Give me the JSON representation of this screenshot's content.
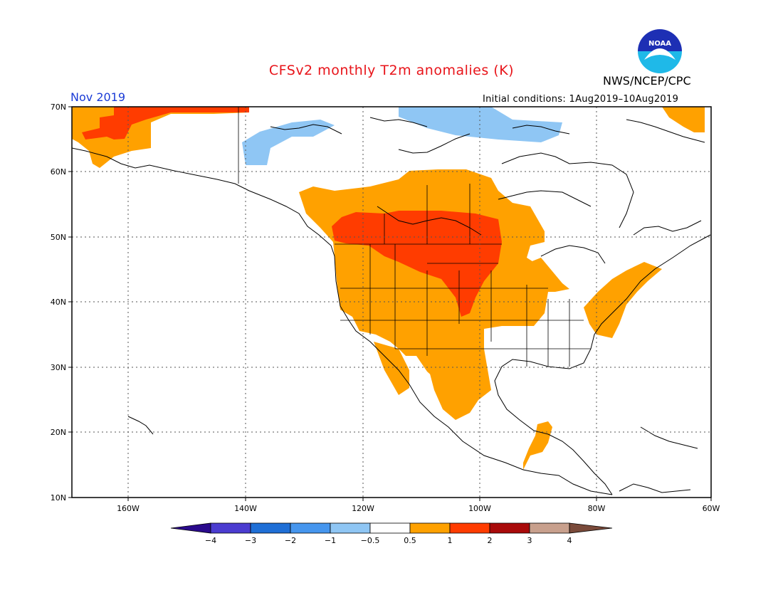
{
  "title": "CFSv2 monthly T2m anomalies (K)",
  "valid_month": "Nov 2019",
  "initial_conditions": "Initial conditions: 1Aug2019–10Aug2019",
  "agency": "NWS/NCEP/CPC",
  "logo_text": "NOAA",
  "colors": {
    "title": "#e8141a",
    "valid_month": "#1a3bd6",
    "c_neg4": "#2a0a8c",
    "c_neg3": "#4b3cd0",
    "c_neg2": "#1f6fd6",
    "c_neg1": "#4696ee",
    "c_neg05": "#8fc6f4",
    "c_zero": "#ffffff",
    "c_05": "#ffa100",
    "c_1": "#ff3c00",
    "c_2": "#a90a0a",
    "c_3": "#c8a08d",
    "c_4": "#7a4a3a",
    "coast": "#000000",
    "grid": "#555555"
  },
  "axes": {
    "lat_labels": [
      "70N",
      "60N",
      "50N",
      "40N",
      "30N",
      "20N",
      "10N"
    ],
    "lon_labels": [
      "160W",
      "140W",
      "120W",
      "100W",
      "80W",
      "60W"
    ]
  },
  "colorbar": {
    "labels": [
      "−4",
      "−3",
      "−2",
      "−1",
      "−0.5",
      "0.5",
      "1",
      "2",
      "3",
      "4"
    ]
  },
  "map_regions": [
    {
      "name": "Alaska",
      "anomaly_class": "1 to 2 (north), 0.5 to 1 (margins)"
    },
    {
      "name": "Western US & Canadian Prairies",
      "anomaly_class": "0.5 to 1"
    },
    {
      "name": "Northern Plains / Southern Prairies",
      "anomaly_class": "1 to 2"
    },
    {
      "name": "Canadian Arctic Archipelago",
      "anomaly_class": "-1 to -0.5"
    },
    {
      "name": "Mid-Atlantic & New England",
      "anomaly_class": "0.5 to 1"
    },
    {
      "name": "Southeast US",
      "anomaly_class": "-0.5 to 0.5"
    }
  ]
}
